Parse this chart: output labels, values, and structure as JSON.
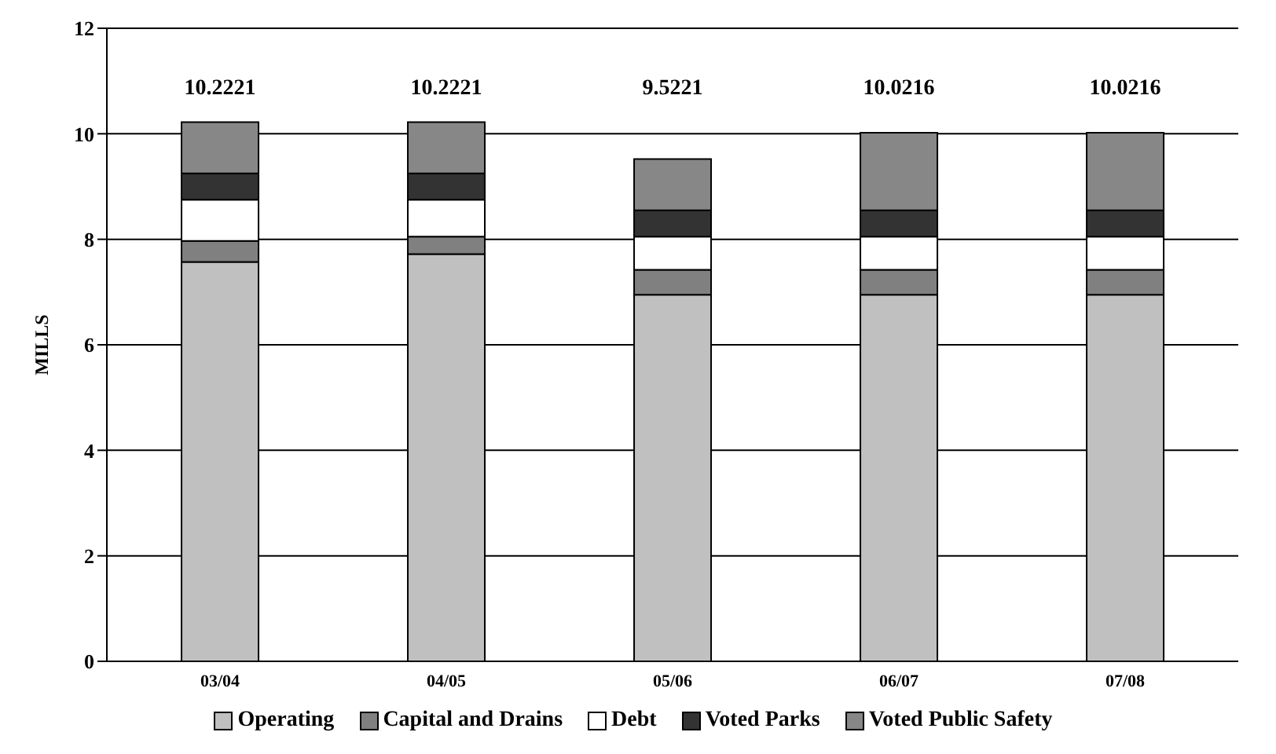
{
  "chart_data": {
    "type": "bar",
    "stacked": true,
    "ylabel": "MILLS",
    "categories": [
      "03/04",
      "04/05",
      "05/06",
      "06/07",
      "07/08"
    ],
    "series": [
      {
        "name": "Operating",
        "color": "#c0c0c0",
        "values": [
          7.57,
          7.72,
          6.95,
          6.95,
          6.95
        ]
      },
      {
        "name": "Capital and Drains",
        "color": "#808080",
        "values": [
          0.4,
          0.33,
          0.47,
          0.47,
          0.47
        ]
      },
      {
        "name": "Debt",
        "color": "#ffffff",
        "values": [
          0.78,
          0.7,
          0.63,
          0.63,
          0.63
        ]
      },
      {
        "name": "Voted Parks",
        "color": "#333333",
        "values": [
          0.5,
          0.5,
          0.5,
          0.5,
          0.5
        ]
      },
      {
        "name": "Voted Public Safety",
        "color": "#878787",
        "values": [
          0.9721,
          0.9721,
          0.9721,
          1.4716,
          1.4716
        ]
      }
    ],
    "totals": [
      "10.2221",
      "10.2221",
      "9.5221",
      "10.0216",
      "10.0216"
    ],
    "ylim": [
      0,
      12
    ],
    "yticks": [
      0,
      2,
      4,
      6,
      8,
      10,
      12
    ],
    "grid": "y",
    "legend": "bottom"
  }
}
